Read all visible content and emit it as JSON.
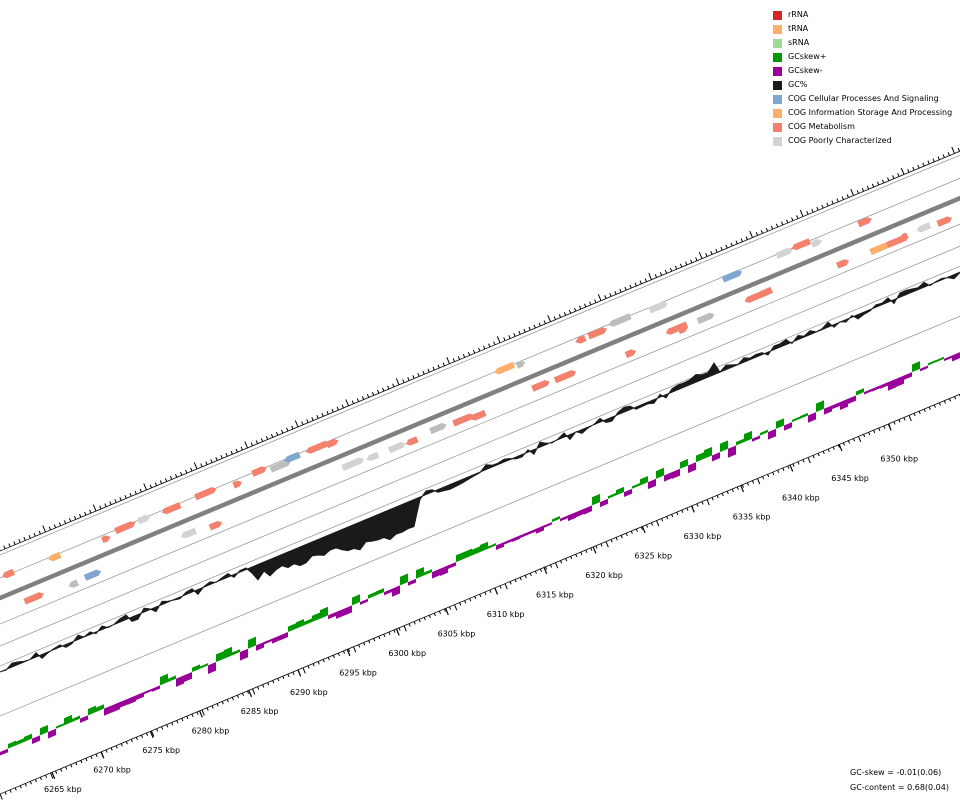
{
  "legend": {
    "items": [
      {
        "label": "rRNA",
        "color": "#d62728"
      },
      {
        "label": "tRNA",
        "color": "#fdae6b"
      },
      {
        "label": "sRNA",
        "color": "#a1d99b"
      },
      {
        "label": "GCskew+",
        "color": "#009900"
      },
      {
        "label": "GCskew-",
        "color": "#990099"
      },
      {
        "label": "GC%",
        "color": "#1a1a1a"
      },
      {
        "label": "COG Cellular Processes And Signaling",
        "color": "#7fa6cf"
      },
      {
        "label": "COG Information Storage And Processing",
        "color": "#fdae6b"
      },
      {
        "label": "COG Metabolism",
        "color": "#f4806e"
      },
      {
        "label": "COG Poorly Characterized",
        "color": "#d3d3d3"
      }
    ]
  },
  "axis": {
    "labels": [
      "6265 kbp",
      "6270 kbp",
      "6275 kbp",
      "6280 kbp",
      "6285 kbp",
      "6290 kbp",
      "6295 kbp",
      "6300 kbp",
      "6305 kbp",
      "6310 kbp",
      "6315 kbp",
      "6320 kbp",
      "6325 kbp",
      "6330 kbp",
      "6335 kbp",
      "6340 kbp",
      "6345 kbp",
      "6350 kbp"
    ]
  },
  "stats": {
    "gc_skew": "GC-skew = -0.01(0.06)",
    "gc_content": "GC-content = 0.68(0.04)"
  },
  "colors": {
    "backbone": "#808080",
    "track_line": "#9a9a9a",
    "gc_fill": "#1a1a1a",
    "skew_pos": "#009900",
    "skew_neg": "#990099"
  }
}
